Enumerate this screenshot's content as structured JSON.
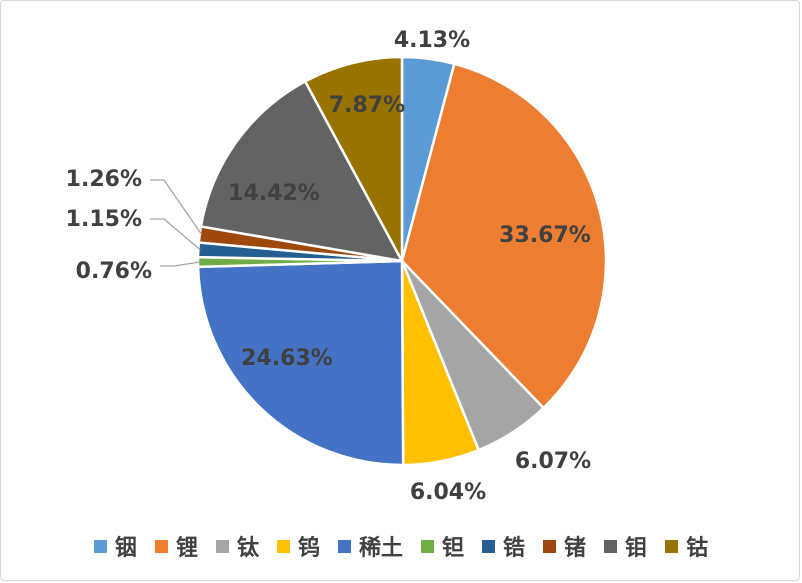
{
  "chart_data": {
    "type": "pie",
    "categories": [
      "铟",
      "锂",
      "钛",
      "钨",
      "稀土",
      "钽",
      "锆",
      "锗",
      "钼",
      "钴"
    ],
    "values": [
      4.13,
      33.67,
      6.07,
      6.04,
      24.63,
      0.76,
      1.15,
      1.26,
      14.42,
      7.87
    ],
    "labels": [
      "4.13%",
      "33.67%",
      "6.07%",
      "6.04%",
      "24.63%",
      "0.76%",
      "1.15%",
      "1.26%",
      "14.42%",
      "7.87%"
    ],
    "colors": [
      "#5b9bd5",
      "#ed7d31",
      "#a5a5a5",
      "#ffc000",
      "#4472c4",
      "#70ad47",
      "#255e91",
      "#9e480e",
      "#636363",
      "#997300"
    ],
    "legend_position": "bottom",
    "start_angle": "12 o'clock",
    "direction": "clockwise"
  }
}
